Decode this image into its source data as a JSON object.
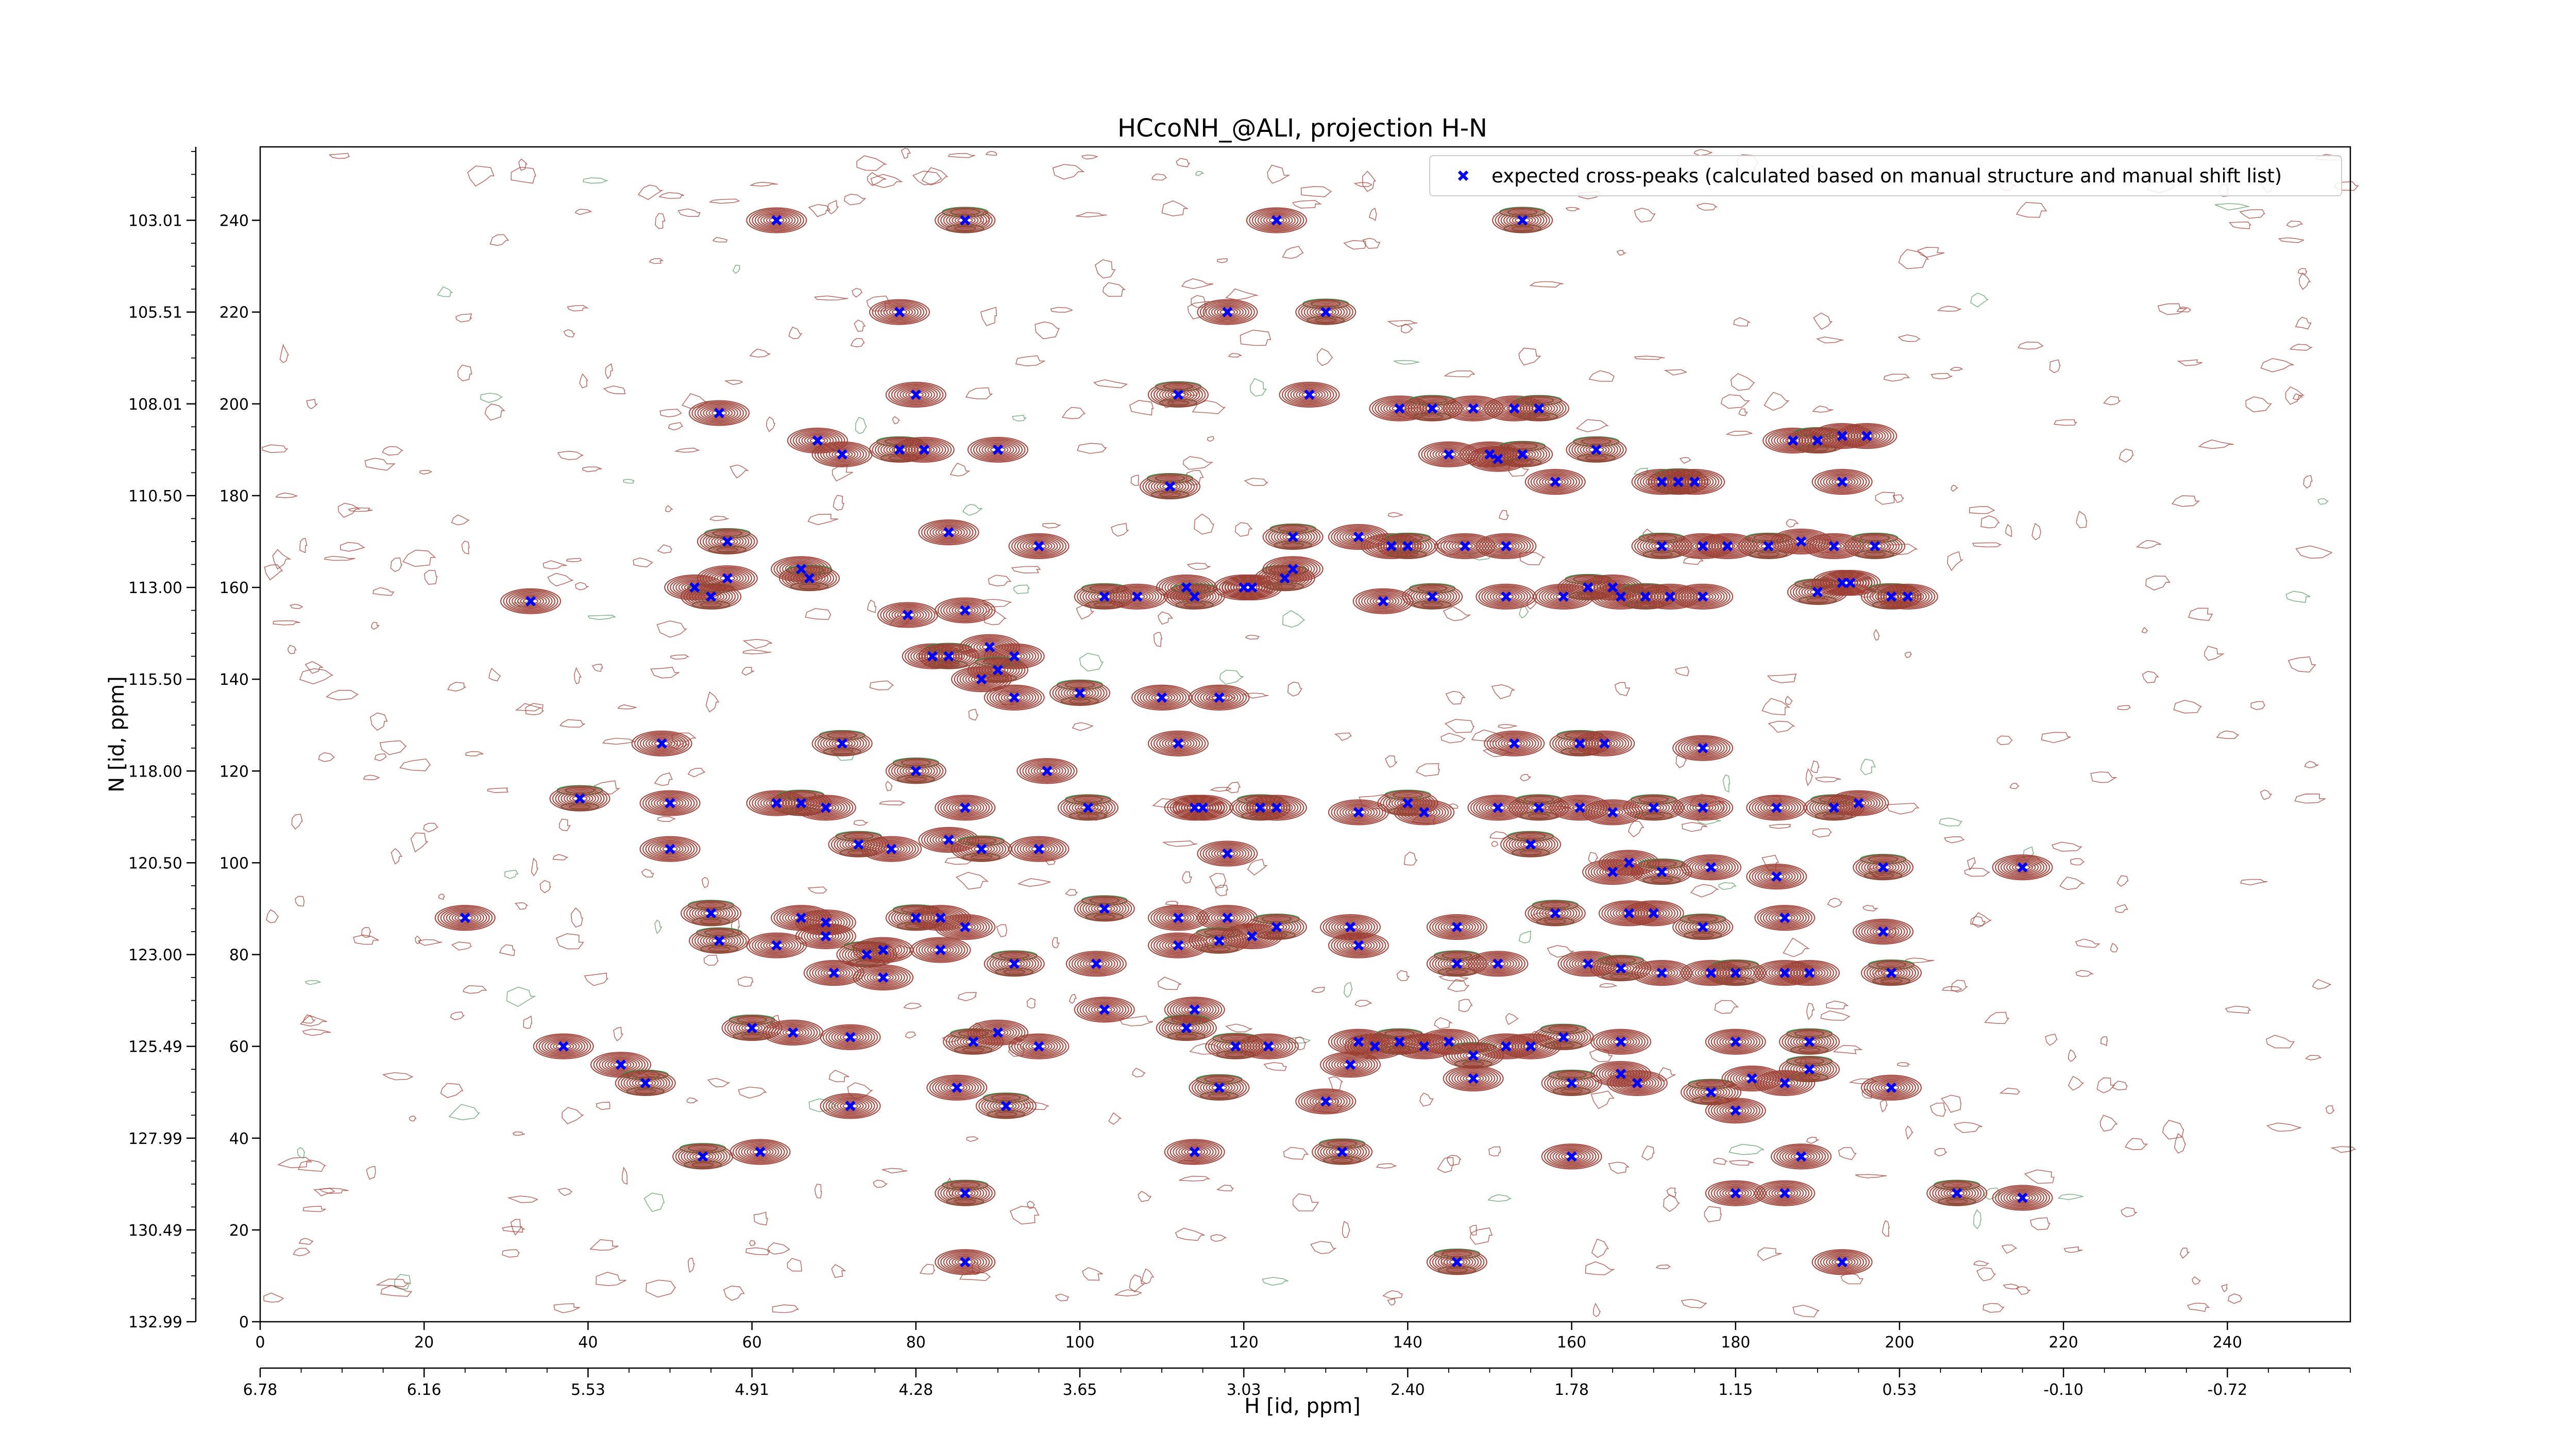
{
  "chart_data": {
    "type": "scatter",
    "title": "HCcoNH_@ALI, projection H-N",
    "xlabel": "H [id, ppm]",
    "ylabel": "N [id, ppm]",
    "x_index_ticks": [
      "0",
      "20",
      "40",
      "60",
      "80",
      "100",
      "120",
      "140",
      "160",
      "180",
      "200",
      "220",
      "240"
    ],
    "x_ppm_ticks": [
      "6.78",
      "6.16",
      "5.53",
      "4.91",
      "4.28",
      "3.65",
      "3.03",
      "2.40",
      "1.78",
      "1.15",
      "0.53",
      "-0.10",
      "-0.72"
    ],
    "y_index_ticks": [
      "0",
      "20",
      "40",
      "60",
      "80",
      "100",
      "120",
      "140",
      "160",
      "180",
      "200",
      "220",
      "240"
    ],
    "y_ppm_ticks": [
      "132.99",
      "130.49",
      "127.99",
      "125.49",
      "123.00",
      "120.50",
      "118.00",
      "115.50",
      "113.00",
      "110.50",
      "108.01",
      "105.51",
      "103.01"
    ],
    "xlim": [
      0,
      255
    ],
    "ylim": [
      0,
      256
    ],
    "x_ppm_range": [
      6.78,
      -0.72
    ],
    "y_ppm_range": [
      132.99,
      103.01
    ],
    "grid": false,
    "legend_position": "top-right",
    "series": [
      {
        "name": "expected cross-peaks (calculated based on manual structure and manual shift list)",
        "color": "#0000ff",
        "marker": "x",
        "points": [
          [
            86,
            240
          ],
          [
            63,
            240
          ],
          [
            124,
            240
          ],
          [
            154,
            240
          ],
          [
            78,
            220
          ],
          [
            118,
            220
          ],
          [
            130,
            220
          ],
          [
            56,
            198
          ],
          [
            80,
            202
          ],
          [
            112,
            202
          ],
          [
            128,
            202
          ],
          [
            139,
            199
          ],
          [
            143,
            199
          ],
          [
            148,
            199
          ],
          [
            153,
            199
          ],
          [
            156,
            199
          ],
          [
            68,
            192
          ],
          [
            71,
            189
          ],
          [
            78,
            190
          ],
          [
            81,
            190
          ],
          [
            90,
            190
          ],
          [
            163,
            190
          ],
          [
            145,
            189
          ],
          [
            150,
            189
          ],
          [
            154,
            189
          ],
          [
            151,
            188
          ],
          [
            187,
            192
          ],
          [
            190,
            192
          ],
          [
            193,
            193
          ],
          [
            196,
            193
          ],
          [
            111,
            182
          ],
          [
            158,
            183
          ],
          [
            171,
            183
          ],
          [
            173,
            183
          ],
          [
            175,
            183
          ],
          [
            193,
            183
          ],
          [
            57,
            170
          ],
          [
            84,
            172
          ],
          [
            95,
            169
          ],
          [
            126,
            171
          ],
          [
            134,
            171
          ],
          [
            138,
            169
          ],
          [
            140,
            169
          ],
          [
            147,
            169
          ],
          [
            152,
            169
          ],
          [
            171,
            169
          ],
          [
            176,
            169
          ],
          [
            179,
            169
          ],
          [
            184,
            169
          ],
          [
            188,
            170
          ],
          [
            192,
            169
          ],
          [
            197,
            169
          ],
          [
            33,
            157
          ],
          [
            53,
            160
          ],
          [
            55,
            158
          ],
          [
            57,
            162
          ],
          [
            66,
            164
          ],
          [
            67,
            162
          ],
          [
            79,
            154
          ],
          [
            86,
            155
          ],
          [
            103,
            158
          ],
          [
            107,
            158
          ],
          [
            113,
            160
          ],
          [
            114,
            158
          ],
          [
            120,
            160
          ],
          [
            121,
            160
          ],
          [
            125,
            162
          ],
          [
            126,
            164
          ],
          [
            137,
            157
          ],
          [
            143,
            158
          ],
          [
            152,
            158
          ],
          [
            159,
            158
          ],
          [
            162,
            160
          ],
          [
            165,
            160
          ],
          [
            166,
            158
          ],
          [
            169,
            158
          ],
          [
            172,
            158
          ],
          [
            176,
            158
          ],
          [
            190,
            159
          ],
          [
            193,
            161
          ],
          [
            194,
            161
          ],
          [
            199,
            158
          ],
          [
            201,
            158
          ],
          [
            82,
            145
          ],
          [
            84,
            145
          ],
          [
            89,
            147
          ],
          [
            92,
            145
          ],
          [
            90,
            142
          ],
          [
            88,
            140
          ],
          [
            92,
            136
          ],
          [
            100,
            137
          ],
          [
            110,
            136
          ],
          [
            117,
            136
          ],
          [
            71,
            126
          ],
          [
            112,
            126
          ],
          [
            153,
            126
          ],
          [
            161,
            126
          ],
          [
            164,
            126
          ],
          [
            176,
            125
          ],
          [
            80,
            120
          ],
          [
            96,
            120
          ],
          [
            49,
            126
          ],
          [
            39,
            114
          ],
          [
            50,
            113
          ],
          [
            63,
            113
          ],
          [
            66,
            113
          ],
          [
            69,
            112
          ],
          [
            86,
            112
          ],
          [
            101,
            112
          ],
          [
            114,
            112
          ],
          [
            115,
            112
          ],
          [
            122,
            112
          ],
          [
            124,
            112
          ],
          [
            134,
            111
          ],
          [
            140,
            113
          ],
          [
            142,
            111
          ],
          [
            151,
            112
          ],
          [
            156,
            112
          ],
          [
            161,
            112
          ],
          [
            165,
            111
          ],
          [
            170,
            112
          ],
          [
            176,
            112
          ],
          [
            185,
            112
          ],
          [
            192,
            112
          ],
          [
            195,
            113
          ],
          [
            50,
            103
          ],
          [
            73,
            104
          ],
          [
            77,
            103
          ],
          [
            84,
            105
          ],
          [
            88,
            103
          ],
          [
            95,
            103
          ],
          [
            118,
            102
          ],
          [
            155,
            104
          ],
          [
            165,
            98
          ],
          [
            167,
            100
          ],
          [
            171,
            98
          ],
          [
            177,
            99
          ],
          [
            185,
            97
          ],
          [
            198,
            99
          ],
          [
            215,
            99
          ],
          [
            25,
            88
          ],
          [
            55,
            89
          ],
          [
            66,
            88
          ],
          [
            69,
            87
          ],
          [
            80,
            88
          ],
          [
            83,
            88
          ],
          [
            86,
            86
          ],
          [
            103,
            90
          ],
          [
            112,
            88
          ],
          [
            118,
            88
          ],
          [
            124,
            86
          ],
          [
            133,
            86
          ],
          [
            146,
            86
          ],
          [
            158,
            89
          ],
          [
            167,
            89
          ],
          [
            170,
            89
          ],
          [
            176,
            86
          ],
          [
            186,
            88
          ],
          [
            198,
            85
          ],
          [
            56,
            83
          ],
          [
            63,
            82
          ],
          [
            69,
            84
          ],
          [
            74,
            80
          ],
          [
            76,
            81
          ],
          [
            83,
            81
          ],
          [
            92,
            78
          ],
          [
            102,
            78
          ],
          [
            112,
            82
          ],
          [
            117,
            83
          ],
          [
            121,
            84
          ],
          [
            134,
            82
          ],
          [
            146,
            78
          ],
          [
            151,
            78
          ],
          [
            162,
            78
          ],
          [
            166,
            77
          ],
          [
            171,
            76
          ],
          [
            177,
            76
          ],
          [
            180,
            76
          ],
          [
            186,
            76
          ],
          [
            189,
            76
          ],
          [
            199,
            76
          ],
          [
            70,
            76
          ],
          [
            76,
            75
          ],
          [
            60,
            64
          ],
          [
            65,
            63
          ],
          [
            72,
            62
          ],
          [
            87,
            61
          ],
          [
            103,
            68
          ],
          [
            114,
            68
          ],
          [
            113,
            64
          ],
          [
            134,
            61
          ],
          [
            136,
            60
          ],
          [
            139,
            61
          ],
          [
            142,
            60
          ],
          [
            145,
            61
          ],
          [
            148,
            58
          ],
          [
            152,
            60
          ],
          [
            155,
            60
          ],
          [
            159,
            62
          ],
          [
            166,
            61
          ],
          [
            180,
            61
          ],
          [
            189,
            61
          ],
          [
            37,
            60
          ],
          [
            44,
            56
          ],
          [
            47,
            52
          ],
          [
            90,
            63
          ],
          [
            95,
            60
          ],
          [
            119,
            60
          ],
          [
            123,
            60
          ],
          [
            85,
            51
          ],
          [
            117,
            51
          ],
          [
            133,
            56
          ],
          [
            148,
            53
          ],
          [
            160,
            52
          ],
          [
            166,
            54
          ],
          [
            168,
            52
          ],
          [
            177,
            50
          ],
          [
            182,
            53
          ],
          [
            186,
            52
          ],
          [
            189,
            55
          ],
          [
            199,
            51
          ],
          [
            72,
            47
          ],
          [
            91,
            47
          ],
          [
            130,
            48
          ],
          [
            180,
            46
          ],
          [
            54,
            36
          ],
          [
            61,
            37
          ],
          [
            114,
            37
          ],
          [
            132,
            37
          ],
          [
            160,
            36
          ],
          [
            188,
            36
          ],
          [
            86,
            28
          ],
          [
            180,
            28
          ],
          [
            186,
            28
          ],
          [
            207,
            28
          ],
          [
            215,
            27
          ],
          [
            86,
            13
          ],
          [
            146,
            13
          ],
          [
            193,
            13
          ]
        ]
      }
    ]
  }
}
